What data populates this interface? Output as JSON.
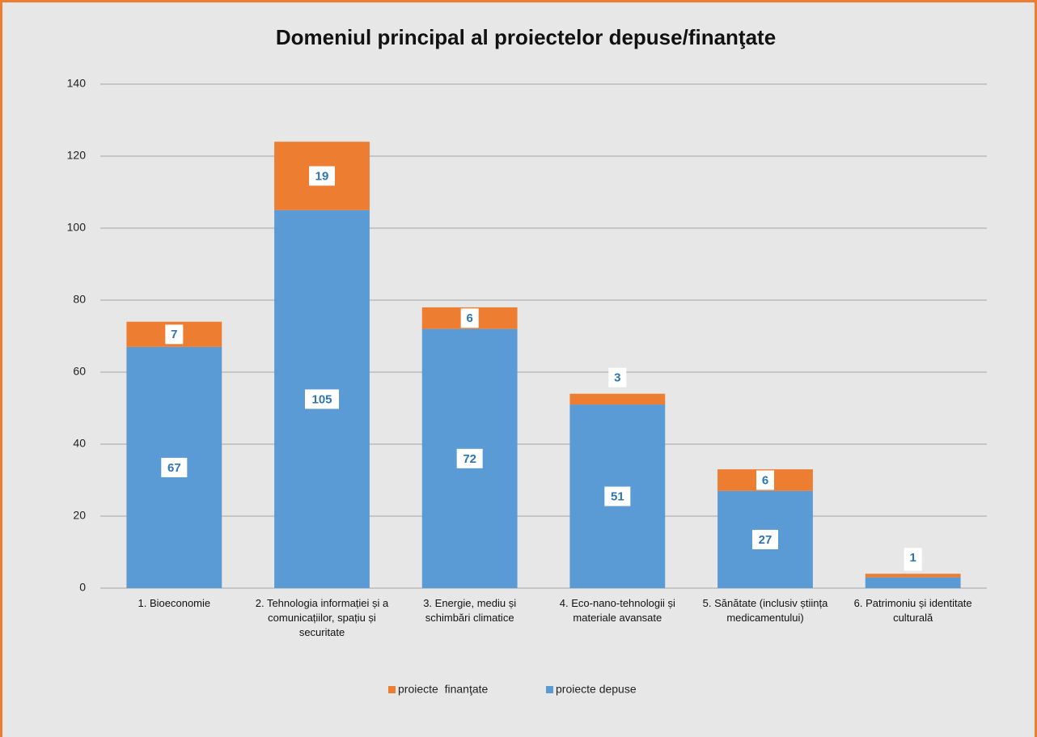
{
  "chart_data": {
    "type": "stacked_bar",
    "title": "Domeniul principal al proiectelor depuse/finanţate",
    "categories": [
      "1. Bioeconomie",
      "2. Tehnologia informației și a comunicațiilor, spațiu și securitate",
      "3. Energie, mediu și schimbări climatice",
      "4. Eco-nano-tehnologii și materiale avansate",
      "5. Sănătate (inclusiv știința medicamentului)",
      "6. Patrimoniu și identitate culturală"
    ],
    "series": [
      {
        "name": "proiecte depuse",
        "color": "#5b9bd5",
        "values": [
          67,
          105,
          72,
          51,
          27,
          3
        ]
      },
      {
        "name": "proiecte  finanţate",
        "color": "#ed7d31",
        "values": [
          7,
          19,
          6,
          3,
          6,
          1
        ]
      }
    ],
    "ylim": [
      0,
      140
    ],
    "yticks": [
      0,
      20,
      40,
      60,
      80,
      100,
      120,
      140
    ],
    "grid": true,
    "legend": "bottom"
  }
}
